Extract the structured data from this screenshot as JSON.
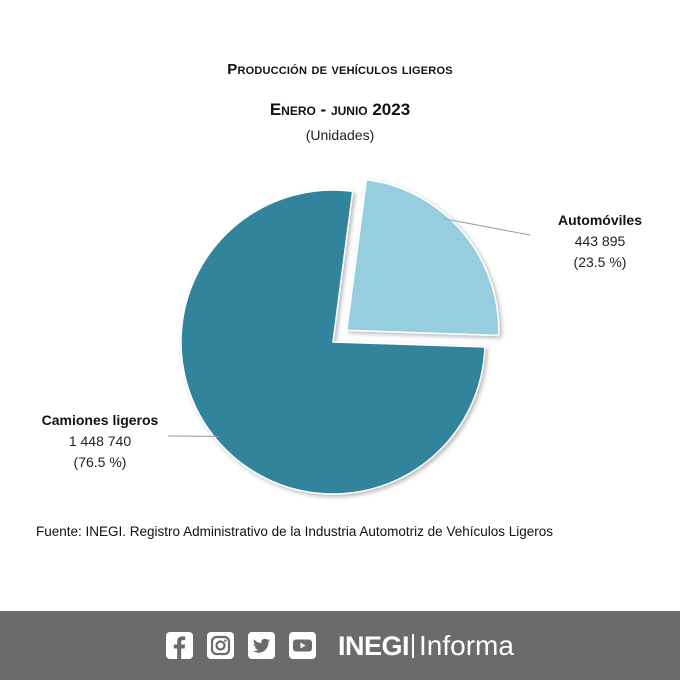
{
  "header": {
    "title": "Producción de vehículos ligeros",
    "period": "Enero - junio 2023",
    "units": "(Unidades)"
  },
  "chart_data": {
    "type": "pie",
    "categories": [
      "Automóviles",
      "Camiones ligeros"
    ],
    "values": [
      443895,
      1448740
    ],
    "value_labels": [
      "443 895",
      "1 448 740"
    ],
    "percent_labels": [
      "(23.5 %)",
      "(76.5 %)"
    ],
    "exploded": [
      "Automóviles"
    ],
    "colors": [
      "#96cee0",
      "#33849c"
    ]
  },
  "source": "Fuente: INEGI. Registro Administrativo de la Industria Automotriz de Vehículos Ligeros",
  "footer": {
    "icons": [
      "facebook-icon",
      "instagram-icon",
      "twitter-icon",
      "youtube-icon"
    ],
    "brand_bold": "INEGI",
    "brand_light": "Informa",
    "background": "#6b6b6b"
  }
}
